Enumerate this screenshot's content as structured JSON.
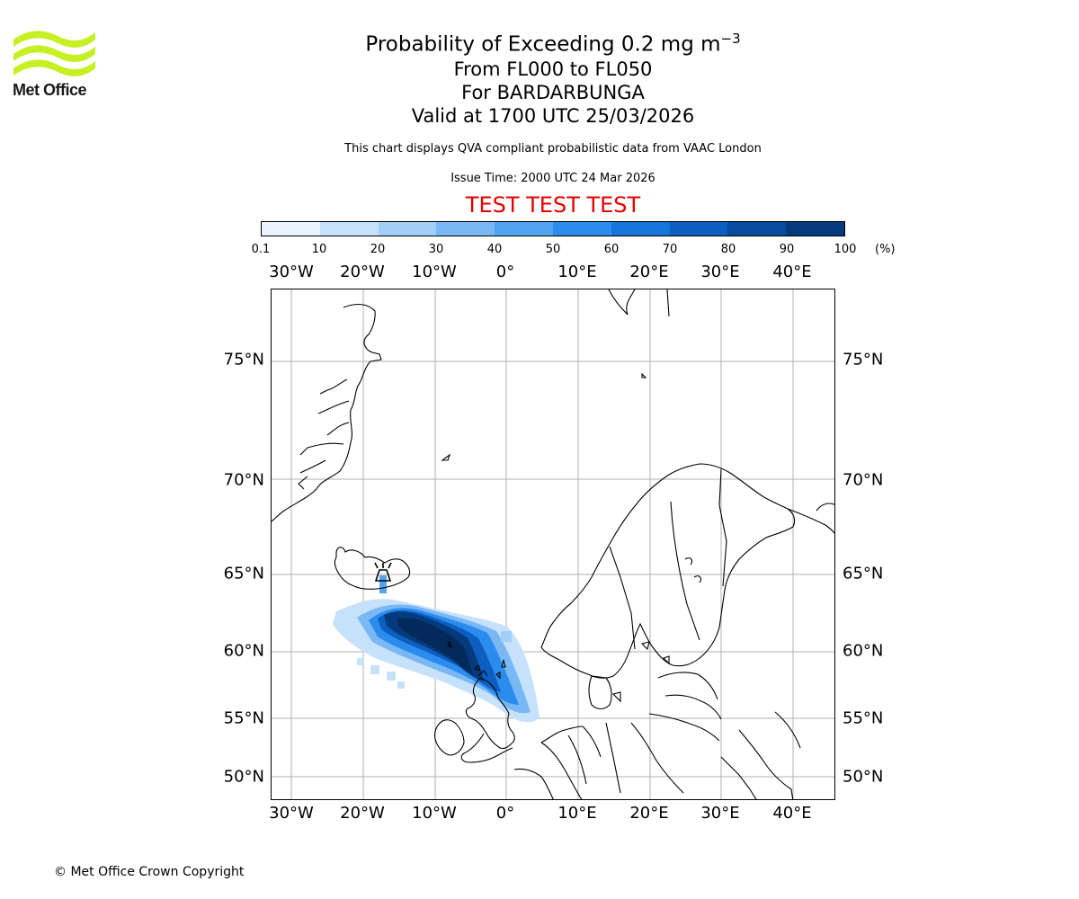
{
  "logo": {
    "text": "Met Office",
    "color": "#c5f023"
  },
  "title": {
    "line1_main": "Probability of Exceeding 0.2 mg m",
    "line1_sup": "−3",
    "line2": "From FL000 to FL050",
    "line3": "For BARDARBUNGA",
    "line4": "Valid at 1700 UTC 25/03/2026"
  },
  "subtitle": "This chart displays QVA compliant probabilistic data from VAAC London",
  "issue_time": "Issue Time: 2000 UTC 24 Mar 2026",
  "test_banner": "TEST TEST TEST",
  "test_color": "#e60000",
  "colorbar": {
    "ticks": [
      "0.1",
      "10",
      "20",
      "30",
      "40",
      "50",
      "60",
      "70",
      "80",
      "90",
      "100"
    ],
    "unit": "(%)",
    "colors": [
      "#e8f3fe",
      "#c6e2fb",
      "#a2cff8",
      "#7ab8f5",
      "#52a3f2",
      "#2b8ced",
      "#1675d9",
      "#0c5fc0",
      "#074b9e",
      "#053a7c",
      "#032a5a"
    ]
  },
  "map": {
    "lon_labels": [
      "30°W",
      "20°W",
      "10°W",
      "0°",
      "10°E",
      "20°E",
      "30°E",
      "40°E"
    ],
    "lat_labels": [
      "75°N",
      "70°N",
      "65°N",
      "60°N",
      "55°N",
      "50°N"
    ],
    "volcano": "BARDARBUNGA"
  },
  "chart_data": {
    "type": "map",
    "title": "Probability of Exceeding 0.2 mg m−3",
    "field": "volcanic ash probability (%)",
    "plume_direction": "south-east from Iceland toward the UK and North Sea",
    "max_probability_class": "90-100"
  },
  "copyright": "© Met Office Crown Copyright"
}
